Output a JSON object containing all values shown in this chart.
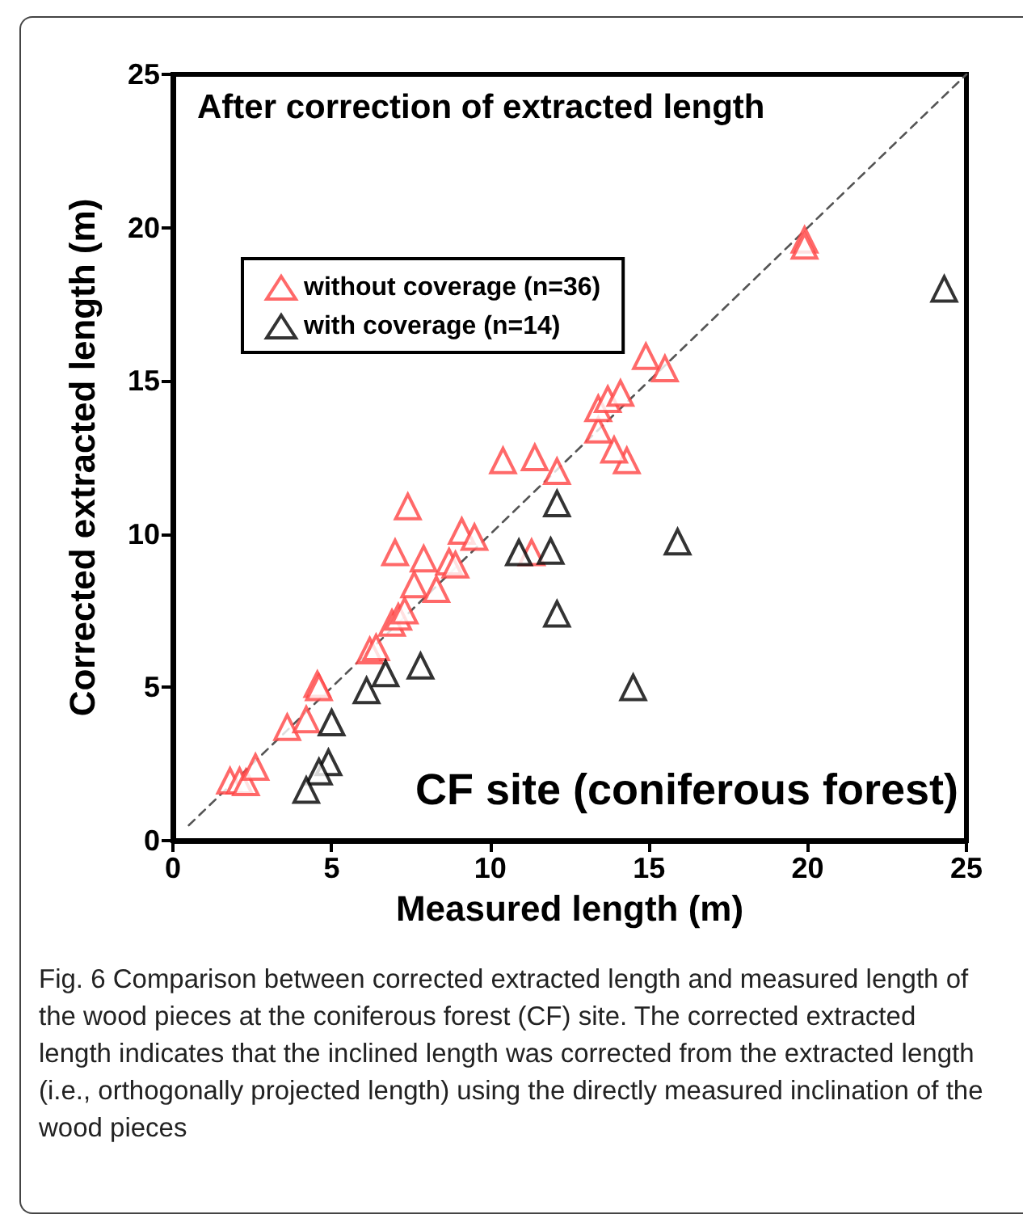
{
  "chart_data": {
    "type": "scatter",
    "xlabel": "Measured length (m)",
    "ylabel": "Corrected extracted length (m)",
    "xlim": [
      0,
      25
    ],
    "ylim": [
      0,
      25
    ],
    "xticks": [
      0,
      5,
      10,
      15,
      20,
      25
    ],
    "yticks": [
      0,
      5,
      10,
      15,
      20,
      25
    ],
    "grid": false,
    "legend": "top left",
    "marker": "triangle",
    "line_style": "dashed",
    "annotations": [
      "After correction of extracted length",
      "CF site (coniferous forest)",
      "Fig. 6 Comparison between corrected extracted length and measured length of the wood pieces at the coniferous forest (CF) site. The corrected extracted length indicates that the inclined length was corrected from the extracted length (i.e., orthogonally projected length) using the directly measured inclination of the wood pieces"
    ],
    "series": [
      {
        "type": "line",
        "marker": "none",
        "color": "#555555",
        "x": [
          0.5,
          25
        ],
        "values": [
          0.5,
          25
        ]
      },
      {
        "name": "without coverage (n=36)",
        "color": "#ff4444",
        "x": [
          1.8,
          2.1,
          2.3,
          2.6,
          3.6,
          4.2,
          4.55,
          4.6,
          6.2,
          6.4,
          6.9,
          7.1,
          7.3,
          7.6,
          8.3,
          7.0,
          7.9,
          8.7,
          8.9,
          7.4,
          9.1,
          9.5,
          11.3,
          10.4,
          11.4,
          12.1,
          14.3,
          13.9,
          13.4,
          13.4,
          13.7,
          14.1,
          14.9,
          15.5,
          19.9,
          19.9
        ],
        "values": [
          1.95,
          1.95,
          1.9,
          2.4,
          3.7,
          3.95,
          5.1,
          5.0,
          6.2,
          6.3,
          7.1,
          7.3,
          7.5,
          8.35,
          8.2,
          9.4,
          9.2,
          9.1,
          9.0,
          10.9,
          10.1,
          9.9,
          9.4,
          12.4,
          12.5,
          12.05,
          12.4,
          12.75,
          13.4,
          14.1,
          14.4,
          14.6,
          15.8,
          15.4,
          19.6,
          19.4
        ]
      },
      {
        "name": "with coverage (n=14)",
        "color": "#000000",
        "x": [
          24.3,
          12.1,
          10.9,
          11.9,
          15.9,
          12.1,
          14.5,
          7.8,
          6.7,
          6.1,
          5.0,
          4.9,
          4.6,
          4.2
        ],
        "values": [
          18.0,
          11.0,
          9.4,
          9.45,
          9.75,
          7.4,
          5.0,
          5.7,
          5.45,
          4.9,
          3.85,
          2.55,
          2.25,
          1.65
        ]
      }
    ]
  }
}
